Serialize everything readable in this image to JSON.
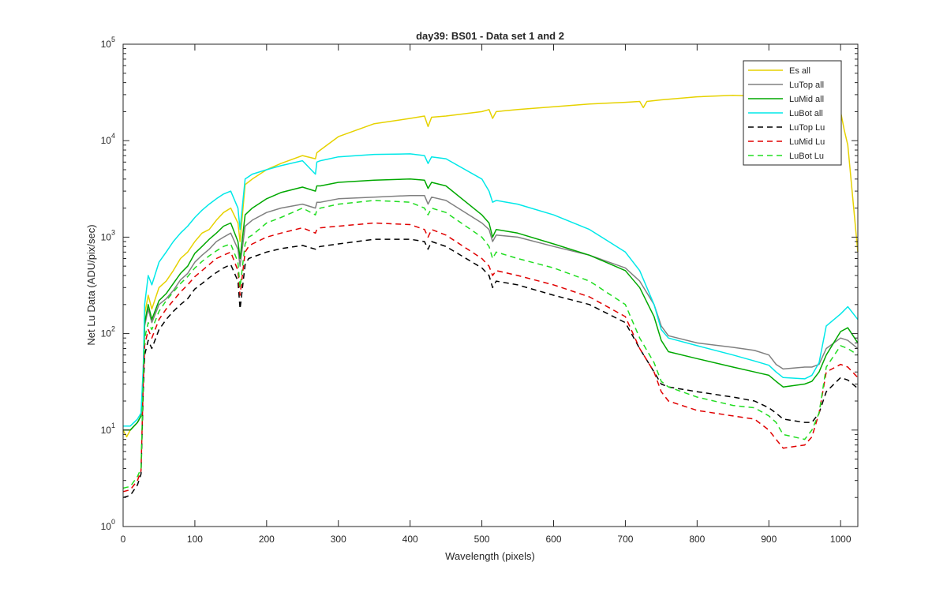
{
  "chart_data": {
    "type": "line",
    "title": "day39: BS01 - Data set 1 and 2",
    "xlabel": "Wavelength (pixels)",
    "ylabel": "Net Lu Data (ADU/pix/sec)",
    "xlim": [
      0,
      1024
    ],
    "ylim": [
      1,
      100000
    ],
    "yscale": "log",
    "xticks": [
      0,
      100,
      200,
      300,
      400,
      500,
      600,
      700,
      800,
      900,
      1000
    ],
    "yticks": [
      1,
      10,
      100,
      1000,
      10000,
      100000
    ],
    "yticklabels": [
      {
        "base": "10",
        "exp": "0"
      },
      {
        "base": "10",
        "exp": "1"
      },
      {
        "base": "10",
        "exp": "2"
      },
      {
        "base": "10",
        "exp": "3"
      },
      {
        "base": "10",
        "exp": "4"
      },
      {
        "base": "10",
        "exp": "5"
      }
    ],
    "grid": false,
    "legend_position": "top-right",
    "series": [
      {
        "name": "Es  all",
        "color": "#e6d200",
        "dash": "solid",
        "x": [
          0,
          5,
          10,
          20,
          25,
          28,
          30,
          35,
          40,
          50,
          60,
          70,
          80,
          90,
          100,
          110,
          120,
          130,
          140,
          150,
          160,
          163,
          170,
          180,
          200,
          220,
          250,
          268,
          270,
          275,
          300,
          350,
          400,
          420,
          425,
          430,
          450,
          500,
          510,
          515,
          520,
          550,
          600,
          650,
          700,
          720,
          725,
          730,
          750,
          800,
          850,
          880,
          900,
          950,
          980,
          990,
          1000,
          1005,
          1010,
          1024
        ],
        "y": [
          10,
          8.5,
          10,
          12,
          14,
          40,
          160,
          250,
          180,
          300,
          350,
          450,
          600,
          700,
          900,
          1100,
          1200,
          1500,
          1800,
          2000,
          1400,
          900,
          3500,
          4000,
          5000,
          5800,
          7000,
          6500,
          7500,
          8000,
          11000,
          15000,
          17000,
          18000,
          14000,
          17500,
          18000,
          20000,
          21000,
          17000,
          20000,
          21000,
          22500,
          24000,
          25000,
          25500,
          22000,
          25500,
          26500,
          28500,
          29500,
          29000,
          28000,
          27000,
          26000,
          22000,
          20000,
          13000,
          9000,
          700
        ]
      },
      {
        "name": "LuTop  all",
        "color": "#808080",
        "dash": "solid",
        "x": [
          0,
          10,
          20,
          25,
          28,
          30,
          35,
          40,
          50,
          60,
          70,
          80,
          90,
          100,
          110,
          120,
          130,
          140,
          150,
          160,
          163,
          170,
          180,
          200,
          220,
          250,
          268,
          270,
          275,
          300,
          350,
          400,
          420,
          425,
          430,
          450,
          500,
          510,
          515,
          520,
          550,
          600,
          650,
          700,
          720,
          740,
          750,
          760,
          800,
          850,
          880,
          900,
          910,
          920,
          950,
          960,
          970,
          980,
          1000,
          1010,
          1024
        ],
        "y": [
          10,
          10,
          12,
          14,
          35,
          120,
          180,
          130,
          200,
          230,
          280,
          360,
          420,
          550,
          650,
          750,
          900,
          1000,
          1100,
          750,
          500,
          1300,
          1500,
          1800,
          2000,
          2200,
          2000,
          2300,
          2300,
          2500,
          2600,
          2700,
          2700,
          2200,
          2600,
          2400,
          1400,
          1200,
          900,
          1050,
          1000,
          800,
          650,
          480,
          350,
          200,
          120,
          95,
          80,
          72,
          67,
          60,
          48,
          43,
          45,
          45,
          48,
          70,
          90,
          85,
          70
        ]
      },
      {
        "name": "LuMid  all",
        "color": "#00a800",
        "dash": "solid",
        "x": [
          0,
          10,
          20,
          25,
          28,
          30,
          35,
          40,
          50,
          60,
          70,
          80,
          90,
          100,
          110,
          120,
          130,
          140,
          150,
          160,
          163,
          170,
          180,
          200,
          220,
          250,
          268,
          270,
          275,
          300,
          350,
          400,
          420,
          425,
          430,
          450,
          500,
          510,
          515,
          520,
          550,
          600,
          650,
          700,
          720,
          740,
          750,
          760,
          800,
          850,
          880,
          900,
          910,
          920,
          950,
          960,
          970,
          980,
          1000,
          1010,
          1024
        ],
        "y": [
          10,
          10,
          12,
          14,
          35,
          130,
          200,
          140,
          220,
          260,
          330,
          420,
          500,
          680,
          800,
          950,
          1100,
          1300,
          1400,
          900,
          600,
          1700,
          2000,
          2500,
          2900,
          3300,
          3000,
          3400,
          3400,
          3700,
          3900,
          4000,
          3900,
          3200,
          3700,
          3400,
          1700,
          1400,
          1000,
          1200,
          1100,
          850,
          650,
          450,
          300,
          150,
          85,
          65,
          55,
          45,
          40,
          37,
          32,
          28,
          30,
          32,
          40,
          60,
          105,
          115,
          80
        ]
      },
      {
        "name": "LuBot  all",
        "color": "#00e8e8",
        "dash": "solid",
        "x": [
          0,
          10,
          20,
          25,
          28,
          30,
          35,
          40,
          50,
          60,
          70,
          80,
          90,
          100,
          110,
          120,
          130,
          140,
          150,
          160,
          163,
          170,
          180,
          200,
          220,
          250,
          268,
          270,
          275,
          300,
          350,
          400,
          420,
          425,
          430,
          450,
          500,
          510,
          515,
          520,
          550,
          600,
          650,
          700,
          720,
          740,
          750,
          760,
          800,
          850,
          880,
          900,
          910,
          920,
          950,
          960,
          970,
          980,
          1000,
          1010,
          1024
        ],
        "y": [
          11,
          11,
          13,
          15,
          45,
          200,
          400,
          320,
          550,
          700,
          900,
          1100,
          1300,
          1600,
          1900,
          2200,
          2500,
          2800,
          3000,
          2000,
          1200,
          4000,
          4500,
          5000,
          5500,
          6200,
          4500,
          6000,
          6200,
          6800,
          7200,
          7300,
          7000,
          5800,
          6800,
          6500,
          4000,
          3000,
          2300,
          2400,
          2200,
          1700,
          1200,
          700,
          450,
          200,
          110,
          90,
          75,
          60,
          52,
          47,
          40,
          35,
          34,
          37,
          50,
          120,
          160,
          190,
          140
        ]
      },
      {
        "name": "LuTop  Lu",
        "color": "#000000",
        "dash": "dashed",
        "x": [
          0,
          10,
          20,
          25,
          28,
          30,
          35,
          40,
          50,
          60,
          70,
          80,
          90,
          100,
          110,
          120,
          130,
          140,
          150,
          160,
          163,
          170,
          175,
          180,
          200,
          220,
          250,
          268,
          270,
          275,
          300,
          350,
          400,
          420,
          425,
          430,
          450,
          500,
          510,
          515,
          520,
          550,
          600,
          650,
          700,
          720,
          740,
          750,
          760,
          800,
          850,
          880,
          900,
          910,
          920,
          950,
          960,
          970,
          980,
          1000,
          1010,
          1024
        ],
        "y": [
          2,
          2.1,
          2.7,
          3.5,
          25,
          60,
          85,
          70,
          110,
          140,
          170,
          200,
          230,
          290,
          330,
          380,
          430,
          480,
          520,
          350,
          180,
          520,
          600,
          620,
          700,
          760,
          820,
          750,
          780,
          800,
          850,
          950,
          950,
          900,
          750,
          900,
          800,
          480,
          400,
          300,
          350,
          320,
          250,
          200,
          130,
          70,
          40,
          30,
          28,
          25,
          22,
          20,
          17,
          15,
          13,
          12,
          12,
          15,
          25,
          35,
          33,
          27
        ]
      },
      {
        "name": "LuMid  Lu",
        "color": "#e00000",
        "dash": "dashed",
        "x": [
          0,
          10,
          20,
          25,
          28,
          30,
          35,
          40,
          50,
          60,
          70,
          80,
          90,
          100,
          110,
          120,
          130,
          140,
          150,
          160,
          163,
          170,
          175,
          180,
          200,
          220,
          250,
          268,
          270,
          275,
          300,
          350,
          400,
          420,
          425,
          430,
          450,
          500,
          510,
          515,
          520,
          550,
          600,
          650,
          700,
          720,
          740,
          750,
          760,
          800,
          850,
          880,
          900,
          910,
          920,
          950,
          960,
          970,
          980,
          1000,
          1010,
          1024
        ],
        "y": [
          2.3,
          2.4,
          3,
          3.8,
          30,
          75,
          110,
          90,
          140,
          180,
          220,
          270,
          320,
          390,
          450,
          520,
          600,
          650,
          700,
          450,
          250,
          700,
          800,
          850,
          1000,
          1100,
          1250,
          1100,
          1200,
          1250,
          1300,
          1400,
          1350,
          1200,
          1000,
          1200,
          1050,
          600,
          500,
          400,
          450,
          400,
          320,
          240,
          150,
          70,
          40,
          25,
          20,
          16,
          14,
          13,
          10,
          8,
          6.5,
          7,
          8.5,
          15,
          40,
          48,
          45,
          35
        ]
      },
      {
        "name": "LuBot  Lu",
        "color": "#22dd22",
        "dash": "dashed",
        "x": [
          0,
          10,
          20,
          25,
          28,
          30,
          35,
          40,
          50,
          60,
          70,
          80,
          90,
          100,
          110,
          120,
          130,
          140,
          150,
          160,
          163,
          170,
          175,
          180,
          200,
          220,
          250,
          268,
          270,
          275,
          300,
          350,
          400,
          420,
          425,
          430,
          450,
          500,
          510,
          515,
          520,
          550,
          600,
          650,
          700,
          720,
          740,
          750,
          760,
          800,
          850,
          880,
          900,
          910,
          920,
          950,
          960,
          970,
          980,
          1000,
          1010,
          1024
        ],
        "y": [
          2.5,
          2.6,
          3.3,
          4,
          35,
          90,
          130,
          110,
          170,
          220,
          270,
          330,
          390,
          480,
          560,
          640,
          720,
          800,
          850,
          550,
          300,
          850,
          1000,
          1050,
          1400,
          1600,
          2000,
          1700,
          1900,
          2000,
          2200,
          2400,
          2300,
          2000,
          1700,
          2000,
          1800,
          1000,
          800,
          600,
          700,
          600,
          480,
          350,
          200,
          90,
          50,
          32,
          28,
          22,
          18,
          17,
          14,
          12,
          9,
          8,
          10,
          15,
          45,
          75,
          70,
          60
        ]
      }
    ]
  }
}
